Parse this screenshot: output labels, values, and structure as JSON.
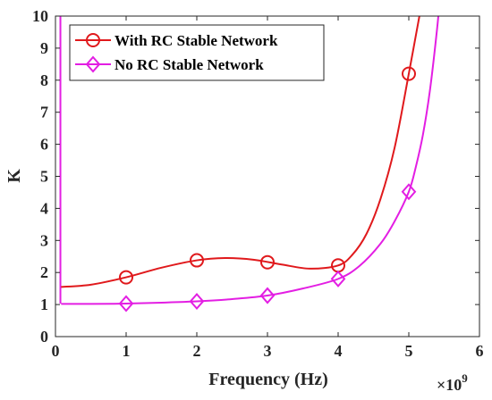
{
  "chart_data": {
    "type": "line",
    "title": "",
    "xlabel": "Frequency (Hz)",
    "ylabel": "K",
    "x_exponent_base": "×10",
    "x_exponent_power": "9",
    "xlim": [
      0,
      6
    ],
    "ylim": [
      0,
      10
    ],
    "xticks": [
      "0",
      "1",
      "2",
      "3",
      "4",
      "5",
      "6"
    ],
    "yticks": [
      "0",
      "1",
      "2",
      "3",
      "4",
      "5",
      "6",
      "7",
      "8",
      "9",
      "10"
    ],
    "grid": false,
    "legend_position": "top-left",
    "series": [
      {
        "name": "With RC Stable Network",
        "color": "#e0191c",
        "marker": "circle",
        "markers": {
          "x": [
            1,
            2,
            3,
            4,
            5
          ],
          "y": [
            1.85,
            2.38,
            2.32,
            2.22,
            8.2
          ]
        },
        "curve": {
          "x": [
            0.08,
            0.5,
            1.0,
            1.5,
            2.0,
            2.4,
            2.8,
            3.2,
            3.6,
            4.0,
            4.2,
            4.4,
            4.6,
            4.8,
            5.0,
            5.1,
            5.2,
            5.25
          ],
          "y": [
            1.55,
            1.62,
            1.85,
            2.15,
            2.38,
            2.45,
            2.4,
            2.25,
            2.12,
            2.22,
            2.55,
            3.2,
            4.3,
            5.9,
            8.2,
            9.4,
            10.6,
            11.2
          ]
        }
      },
      {
        "name": "No RC Stable Network",
        "color": "#e31ee3",
        "marker": "diamond",
        "markers": {
          "x": [
            1,
            2,
            3,
            4,
            5
          ],
          "y": [
            1.03,
            1.1,
            1.28,
            1.8,
            4.52
          ]
        },
        "curve": {
          "x": [
            0.08,
            0.5,
            1.0,
            1.5,
            2.0,
            2.5,
            3.0,
            3.5,
            4.0,
            4.3,
            4.6,
            4.8,
            5.0,
            5.1,
            5.2,
            5.3,
            5.4,
            5.45
          ],
          "y": [
            1.02,
            1.02,
            1.03,
            1.06,
            1.1,
            1.17,
            1.28,
            1.5,
            1.8,
            2.2,
            2.9,
            3.6,
            4.52,
            5.3,
            6.3,
            7.7,
            9.6,
            10.8
          ]
        }
      }
    ],
    "spike": {
      "color": "#e31ee3",
      "x": [
        0.07,
        0.07
      ],
      "y": [
        10,
        1.03
      ]
    }
  }
}
